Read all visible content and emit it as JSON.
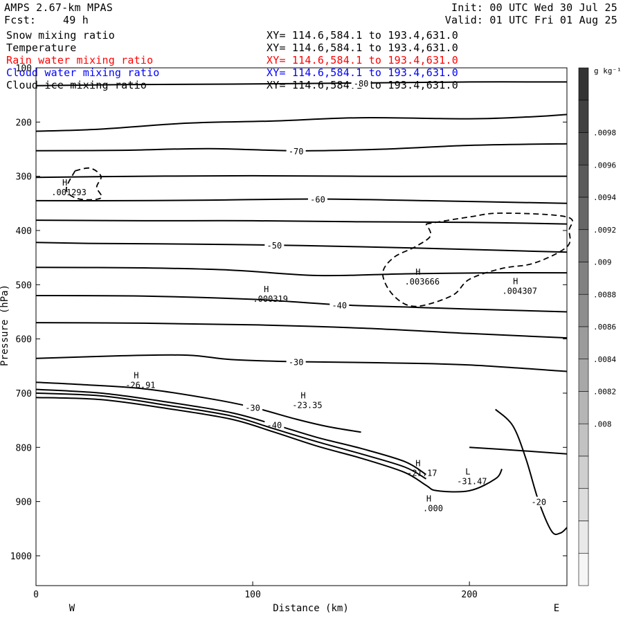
{
  "header": {
    "model": "AMPS 2.67-km MPAS",
    "forecast_label": "Fcst:",
    "forecast_hours": "49 h",
    "init": "Init: 00 UTC Wed 30 Jul 25",
    "valid": "Valid: 01 UTC Fri 01 Aug 25",
    "fields": [
      {
        "name": "Snow mixing ratio",
        "xy": "XY= 114.6,584.1 to 193.4,631.0",
        "color": "#000000"
      },
      {
        "name": "Temperature",
        "xy": "XY= 114.6,584.1 to 193.4,631.0",
        "color": "#000000"
      },
      {
        "name": "Rain water mixing ratio",
        "xy": "XY= 114.6,584.1 to 193.4,631.0",
        "color": "#ff0000"
      },
      {
        "name": "Cloud water mixing ratio",
        "xy": "XY= 114.6,584.1 to 193.4,631.0",
        "color": "#0000ff"
      },
      {
        "name": "Cloud ice mixing ratio",
        "xy": "XY= 114.6,584.1 to 193.4,631.0",
        "color": "#000000"
      }
    ]
  },
  "chart_data": {
    "type": "contour-cross-section",
    "xlabel": "Distance (km)",
    "ylabel": "Pressure (hPa)",
    "xlim": [
      0,
      245
    ],
    "ylim": [
      1055,
      100
    ],
    "y_inverted": true,
    "x_ticks": [
      0,
      100,
      200
    ],
    "y_ticks": [
      100,
      200,
      300,
      400,
      500,
      600,
      700,
      800,
      900,
      1000
    ],
    "x_end_labels": {
      "left": "W",
      "right": "E"
    },
    "colorbar": {
      "unit": "g kg⁻¹",
      "ticks": [
        ".0098",
        ".0096",
        ".0094",
        ".0092",
        ".009",
        ".0088",
        ".0086",
        ".0084",
        ".0082",
        ".008"
      ],
      "levels": 16,
      "color_top": "#333333",
      "color_bottom": "#f6f6f6"
    },
    "temperature_contours": [
      {
        "label": "-80",
        "points": [
          [
            0,
            133
          ],
          [
            40,
            131
          ],
          [
            90,
            130
          ],
          [
            150,
            128
          ],
          [
            200,
            126
          ],
          [
            245,
            126
          ]
        ]
      },
      {
        "label": "",
        "points": [
          [
            0,
            217
          ],
          [
            30,
            213
          ],
          [
            70,
            202
          ],
          [
            110,
            198
          ],
          [
            150,
            192
          ],
          [
            200,
            194
          ],
          [
            230,
            190
          ],
          [
            245,
            186
          ]
        ]
      },
      {
        "label": "-70",
        "points": [
          [
            0,
            253
          ],
          [
            40,
            252
          ],
          [
            80,
            249
          ],
          [
            120,
            253
          ],
          [
            160,
            250
          ],
          [
            200,
            243
          ],
          [
            245,
            240
          ]
        ]
      },
      {
        "label": "",
        "points": [
          [
            0,
            302
          ],
          [
            50,
            300
          ],
          [
            100,
            299
          ],
          [
            150,
            300
          ],
          [
            200,
            300
          ],
          [
            245,
            300
          ]
        ]
      },
      {
        "label": "-60",
        "points": [
          [
            0,
            345
          ],
          [
            40,
            345
          ],
          [
            80,
            344
          ],
          [
            130,
            342
          ],
          [
            180,
            345
          ],
          [
            245,
            350
          ]
        ]
      },
      {
        "label": "",
        "points": [
          [
            0,
            381
          ],
          [
            50,
            382
          ],
          [
            100,
            382
          ],
          [
            150,
            384
          ],
          [
            200,
            385
          ],
          [
            245,
            388
          ]
        ]
      },
      {
        "label": "-50",
        "points": [
          [
            0,
            422
          ],
          [
            30,
            424
          ],
          [
            70,
            425
          ],
          [
            110,
            427
          ],
          [
            150,
            430
          ],
          [
            200,
            435
          ],
          [
            245,
            440
          ]
        ]
      },
      {
        "label": "",
        "points": [
          [
            0,
            468
          ],
          [
            50,
            469
          ],
          [
            90,
            473
          ],
          [
            130,
            483
          ],
          [
            170,
            480
          ],
          [
            210,
            478
          ],
          [
            245,
            478
          ]
        ]
      },
      {
        "label": "-40",
        "points": [
          [
            0,
            520
          ],
          [
            50,
            521
          ],
          [
            100,
            527
          ],
          [
            140,
            537
          ],
          [
            170,
            541
          ],
          [
            200,
            545
          ],
          [
            245,
            550
          ]
        ]
      },
      {
        "label": "",
        "points": [
          [
            0,
            570
          ],
          [
            50,
            571
          ],
          [
            100,
            574
          ],
          [
            150,
            580
          ],
          [
            200,
            590
          ],
          [
            245,
            598
          ]
        ]
      },
      {
        "label": "-30",
        "points": [
          [
            0,
            636
          ],
          [
            40,
            631
          ],
          [
            70,
            630
          ],
          [
            90,
            638
          ],
          [
            120,
            642
          ],
          [
            160,
            644
          ],
          [
            200,
            648
          ],
          [
            245,
            660
          ]
        ]
      },
      {
        "label": "-30",
        "points": [
          [
            0,
            680
          ],
          [
            20,
            684
          ],
          [
            50,
            692
          ],
          [
            80,
            710
          ],
          [
            100,
            726
          ],
          [
            120,
            748
          ],
          [
            135,
            762
          ],
          [
            150,
            772
          ]
        ]
      },
      {
        "label": "-40",
        "points": [
          [
            0,
            693
          ],
          [
            30,
            700
          ],
          [
            60,
            716
          ],
          [
            90,
            736
          ],
          [
            110,
            758
          ],
          [
            130,
            782
          ],
          [
            150,
            802
          ],
          [
            170,
            826
          ],
          [
            180,
            850
          ]
        ]
      },
      {
        "label": "",
        "points": [
          [
            0,
            700
          ],
          [
            30,
            705
          ],
          [
            60,
            722
          ],
          [
            90,
            742
          ],
          [
            110,
            766
          ],
          [
            130,
            790
          ],
          [
            150,
            812
          ],
          [
            170,
            836
          ],
          [
            180,
            858
          ]
        ]
      },
      {
        "label": "",
        "points": [
          [
            0,
            708
          ],
          [
            30,
            712
          ],
          [
            60,
            728
          ],
          [
            90,
            748
          ],
          [
            110,
            772
          ],
          [
            130,
            798
          ],
          [
            150,
            820
          ],
          [
            170,
            846
          ],
          [
            180,
            870
          ],
          [
            185,
            880
          ],
          [
            200,
            880
          ],
          [
            212,
            858
          ],
          [
            215,
            840
          ]
        ]
      },
      {
        "label": "-20",
        "points": [
          [
            212,
            730
          ],
          [
            220,
            760
          ],
          [
            226,
            820
          ],
          [
            232,
            900
          ],
          [
            238,
            955
          ],
          [
            242,
            958
          ],
          [
            245,
            948
          ]
        ]
      },
      {
        "label": "",
        "points": [
          [
            200,
            800
          ],
          [
            220,
            805
          ],
          [
            245,
            812
          ]
        ]
      }
    ],
    "snow_contours_dashed": [
      {
        "points": [
          [
            18,
            290
          ],
          [
            25,
            285
          ],
          [
            30,
            300
          ],
          [
            28,
            320
          ],
          [
            30,
            340
          ],
          [
            20,
            342
          ],
          [
            14,
            325
          ],
          [
            18,
            290
          ]
        ]
      },
      {
        "points": [
          [
            180,
            388
          ],
          [
            200,
            375
          ],
          [
            215,
            368
          ],
          [
            245,
            375
          ],
          [
            246,
            400
          ],
          [
            245,
            430
          ],
          [
            230,
            460
          ],
          [
            215,
            470
          ],
          [
            200,
            490
          ],
          [
            192,
            520
          ],
          [
            175,
            540
          ],
          [
            165,
            520
          ],
          [
            160,
            480
          ],
          [
            165,
            450
          ],
          [
            175,
            430
          ],
          [
            182,
            410
          ],
          [
            180,
            388
          ]
        ]
      }
    ],
    "extrema_labels": [
      {
        "letter": "H",
        "value": ".001293",
        "x": 12,
        "y": 322
      },
      {
        "letter": "H",
        "value": ".000319",
        "x": 105,
        "y": 519
      },
      {
        "letter": "H",
        "value": ".003666",
        "x": 175,
        "y": 487
      },
      {
        "letter": "H",
        "value": ".004307",
        "x": 220,
        "y": 504
      },
      {
        "letter": "H",
        "value": "-26.91",
        "x": 45,
        "y": 678
      },
      {
        "letter": "H",
        "value": "-23.35",
        "x": 122,
        "y": 715
      },
      {
        "letter": "H",
        "value": "-21.17",
        "x": 175,
        "y": 840
      },
      {
        "letter": "L",
        "value": "-31.47",
        "x": 198,
        "y": 855
      },
      {
        "letter": "H",
        "value": ".000",
        "x": 180,
        "y": 905
      }
    ]
  }
}
